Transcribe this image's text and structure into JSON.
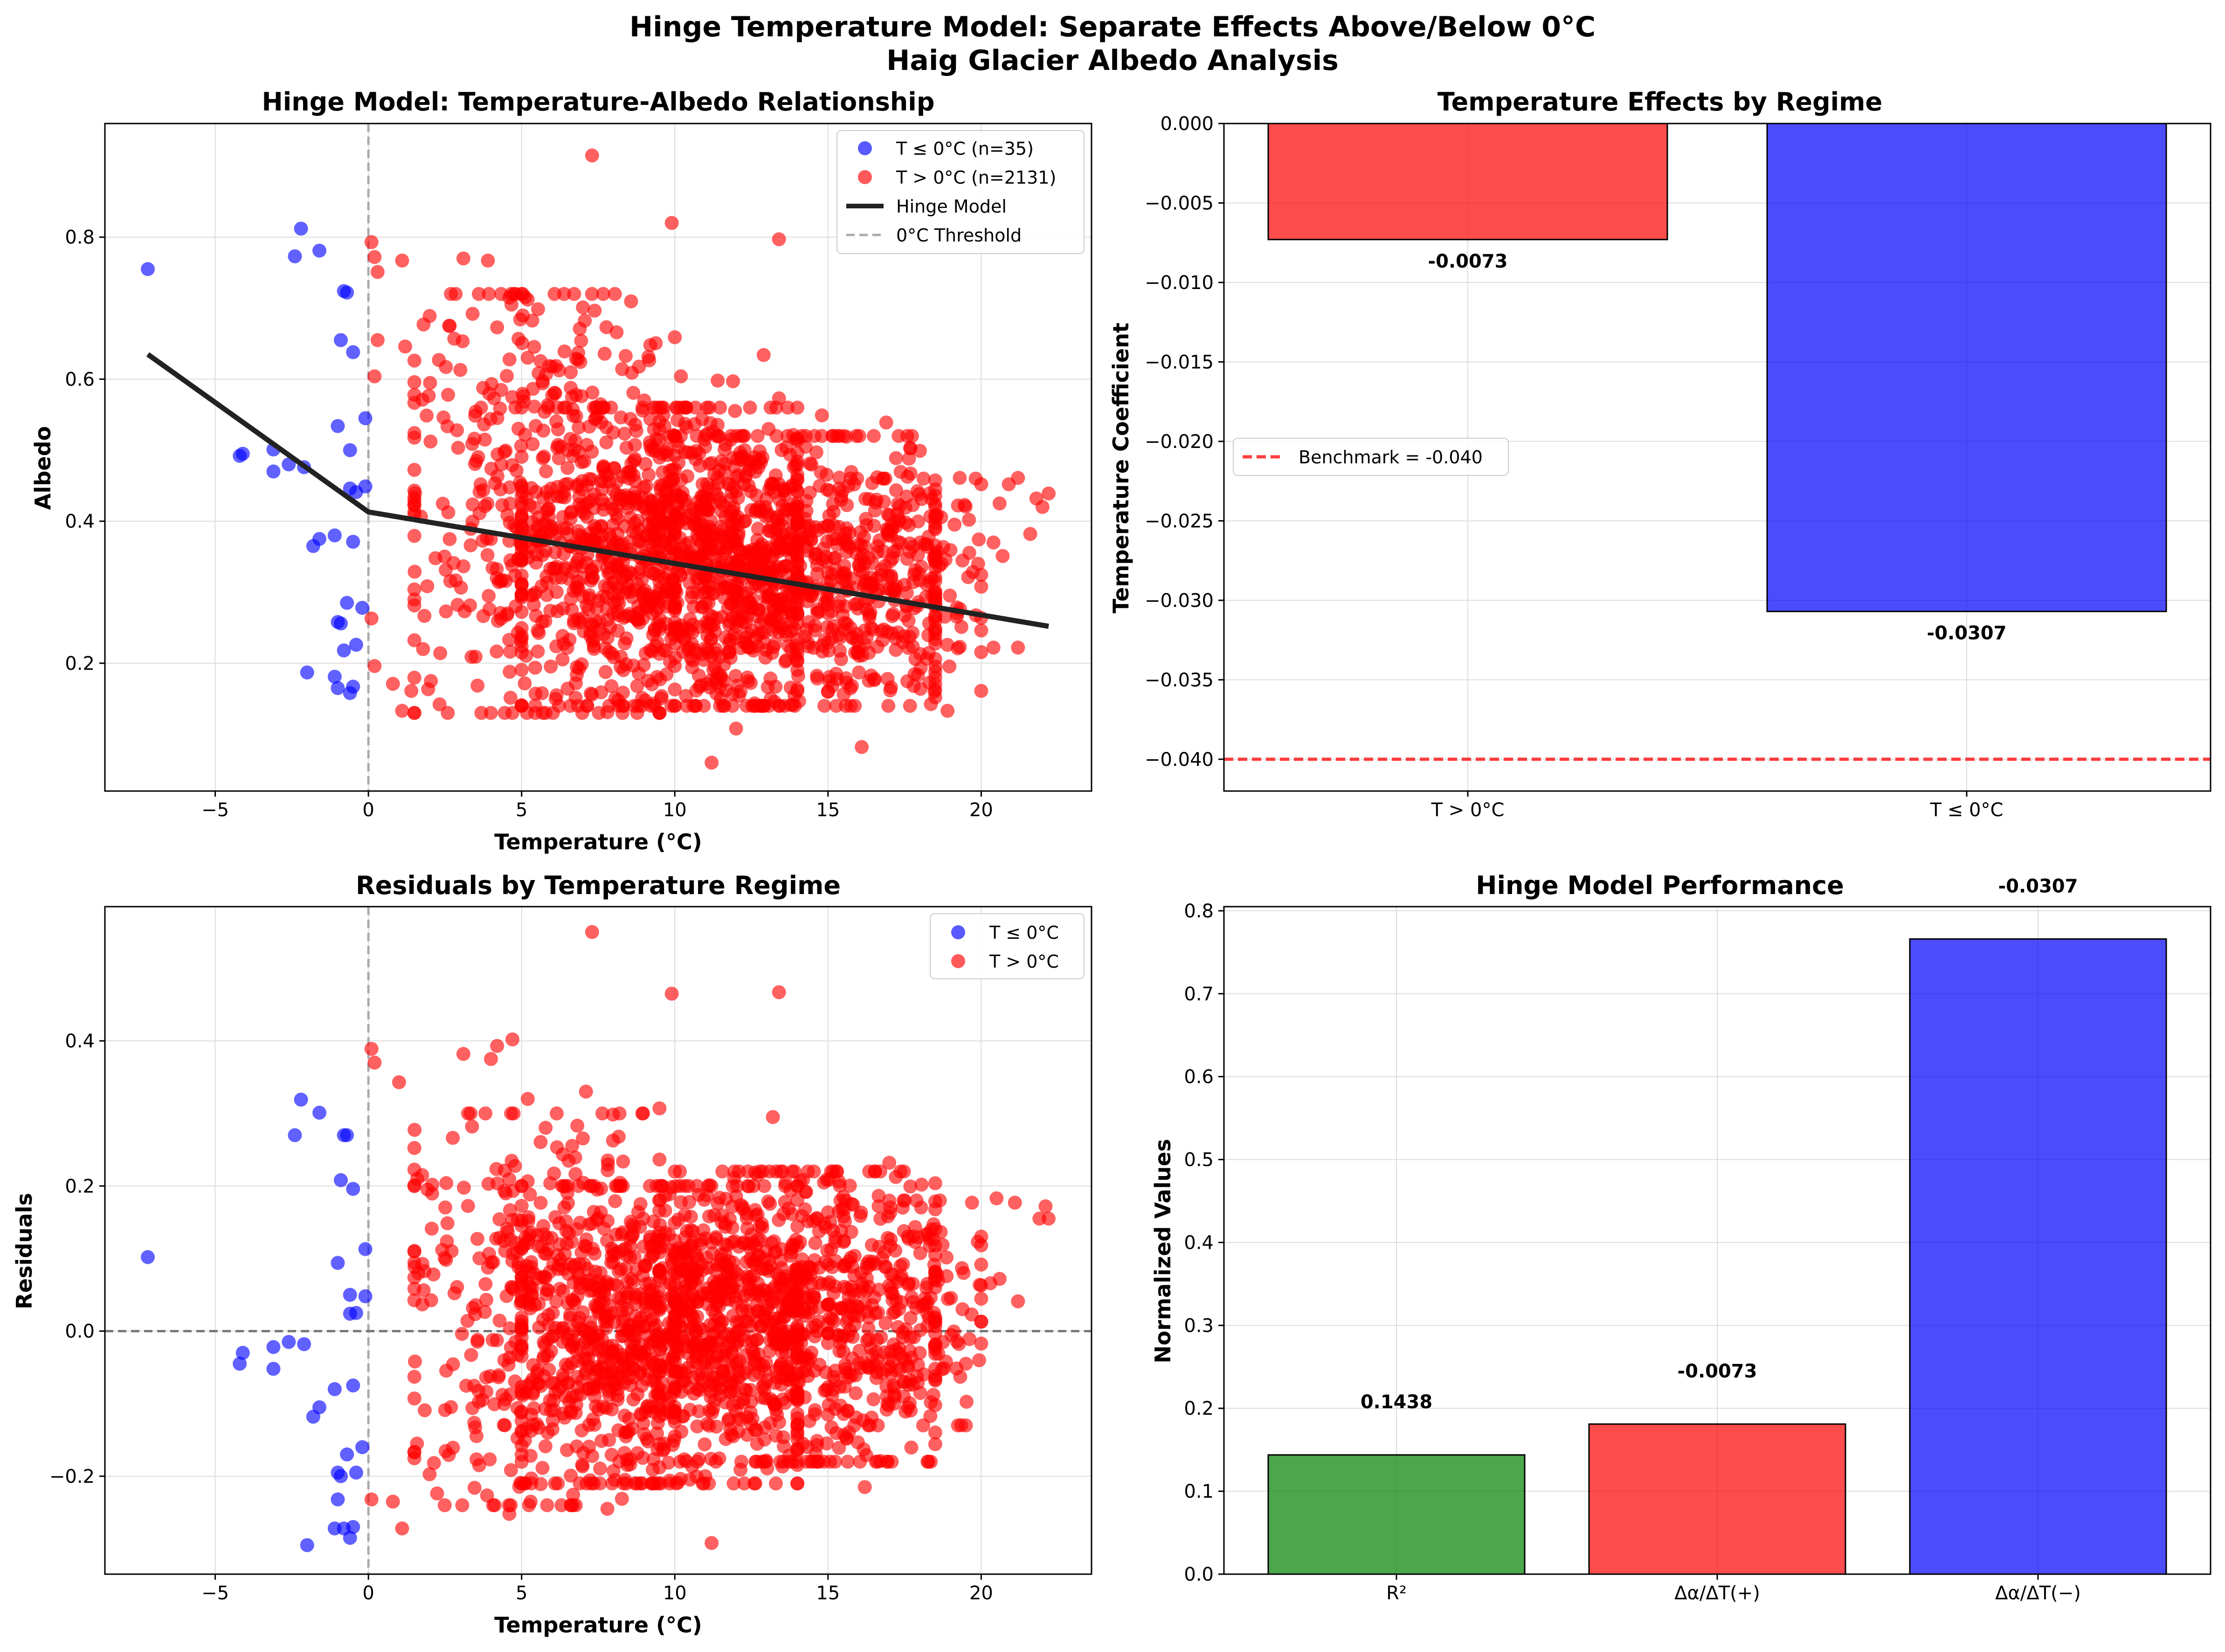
{
  "figure": {
    "title_line1": "Hinge Temperature Model: Separate Effects Above/Below 0°C",
    "title_line2": "Haig Glacier Albedo Analysis"
  },
  "colors": {
    "blue": "#0000ff",
    "red": "#ff0000",
    "green": "#008000",
    "black": "#000000",
    "grid": "#dddddd",
    "threshold": "#aaaaaa"
  },
  "chart_data": [
    {
      "type": "scatter",
      "title": "Hinge Model: Temperature-Albedo Relationship",
      "xlabel": "Temperature (°C)",
      "ylabel": "Albedo",
      "xlim": [
        -8.6,
        23.6
      ],
      "ylim": [
        0.02,
        0.96
      ],
      "xticks": [
        -5,
        0,
        5,
        10,
        15,
        20
      ],
      "yticks": [
        0.2,
        0.4,
        0.6,
        0.8
      ],
      "grid": true,
      "legend_position": "top-right",
      "legend": [
        "T ≤ 0°C (n=35)",
        "T > 0°C (n=2131)",
        "Hinge Model",
        "0°C Threshold"
      ],
      "threshold_x": 0,
      "hinge_line": {
        "x": [
          -7.2,
          0,
          22.2
        ],
        "y": [
          0.635,
          0.413,
          0.252
        ]
      },
      "series": [
        {
          "name": "T ≤ 0°C (n=35)",
          "color": "#0000ff",
          "points": [
            [
              -7.2,
              0.755
            ],
            [
              -2.2,
              0.812
            ],
            [
              -2.4,
              0.773
            ],
            [
              -1.6,
              0.781
            ],
            [
              -0.8,
              0.724
            ],
            [
              -0.7,
              0.722
            ],
            [
              -0.9,
              0.655
            ],
            [
              -0.5,
              0.638
            ],
            [
              -1.0,
              0.534
            ],
            [
              -0.6,
              0.5
            ],
            [
              -4.1,
              0.495
            ],
            [
              -4.2,
              0.492
            ],
            [
              -3.1,
              0.501
            ],
            [
              -2.6,
              0.48
            ],
            [
              -2.1,
              0.476
            ],
            [
              -3.1,
              0.47
            ],
            [
              -0.1,
              0.545
            ],
            [
              -0.6,
              0.446
            ],
            [
              -0.4,
              0.441
            ],
            [
              -0.1,
              0.449
            ],
            [
              -1.1,
              0.38
            ],
            [
              -1.6,
              0.375
            ],
            [
              -1.8,
              0.365
            ],
            [
              -0.5,
              0.371
            ],
            [
              -0.7,
              0.285
            ],
            [
              -0.2,
              0.278
            ],
            [
              -1.0,
              0.258
            ],
            [
              -0.9,
              0.256
            ],
            [
              -0.4,
              0.226
            ],
            [
              -0.8,
              0.218
            ],
            [
              -2.0,
              0.187
            ],
            [
              -1.1,
              0.181
            ],
            [
              -0.5,
              0.167
            ],
            [
              -0.6,
              0.158
            ],
            [
              -1.0,
              0.165
            ]
          ]
        },
        {
          "name": "T > 0°C (n=2131)",
          "color": "#ff0000",
          "points": [
            [
              7.3,
              0.915
            ],
            [
              9.9,
              0.82
            ],
            [
              13.4,
              0.797
            ],
            [
              0.1,
              0.793
            ],
            [
              0.2,
              0.772
            ],
            [
              1.1,
              0.767
            ],
            [
              3.1,
              0.77
            ],
            [
              3.9,
              0.767
            ],
            [
              0.3,
              0.751
            ],
            [
              4.6,
              0.715
            ],
            [
              5.2,
              0.712
            ],
            [
              7.0,
              0.701
            ],
            [
              2.0,
              0.689
            ],
            [
              3.4,
              0.692
            ],
            [
              1.8,
              0.677
            ],
            [
              4.2,
              0.673
            ],
            [
              6.9,
              0.671
            ],
            [
              8.1,
              0.666
            ],
            [
              10.0,
              0.659
            ],
            [
              9.2,
              0.648
            ],
            [
              0.3,
              0.655
            ],
            [
              1.2,
              0.646
            ],
            [
              2.3,
              0.627
            ],
            [
              6.4,
              0.639
            ],
            [
              12.9,
              0.634
            ],
            [
              0.2,
              0.604
            ],
            [
              3.0,
              0.613
            ],
            [
              5.8,
              0.607
            ],
            [
              8.6,
              0.609
            ],
            [
              10.2,
              0.604
            ],
            [
              11.4,
              0.598
            ],
            [
              11.9,
              0.597
            ],
            [
              1.5,
              0.578
            ],
            [
              2.6,
              0.578
            ],
            [
              4.1,
              0.573
            ],
            [
              6.1,
              0.58
            ],
            [
              9.0,
              0.57
            ],
            [
              13.4,
              0.573
            ],
            [
              16.9,
              0.539
            ],
            [
              14.8,
              0.549
            ],
            [
              15.6,
              0.519
            ],
            [
              18.0,
              0.499
            ],
            [
              19.3,
              0.461
            ],
            [
              20.0,
              0.452
            ],
            [
              20.9,
              0.452
            ],
            [
              21.2,
              0.461
            ],
            [
              21.8,
              0.432
            ],
            [
              22.2,
              0.439
            ],
            [
              22.0,
              0.42
            ],
            [
              20.6,
              0.425
            ],
            [
              19.6,
              0.402
            ],
            [
              20.4,
              0.37
            ],
            [
              19.9,
              0.34
            ],
            [
              20.7,
              0.351
            ],
            [
              21.6,
              0.382
            ],
            [
              19.3,
              0.223
            ],
            [
              20.4,
              0.222
            ],
            [
              21.2,
              0.222
            ],
            [
              18.5,
              0.152
            ],
            [
              18.9,
              0.133
            ],
            [
              16.1,
              0.082
            ],
            [
              11.2,
              0.06
            ],
            [
              12.0,
              0.108
            ],
            [
              7.8,
              0.131
            ],
            [
              1.1,
              0.133
            ],
            [
              0.8,
              0.171
            ],
            [
              0.2,
              0.196
            ],
            [
              1.4,
              0.161
            ],
            [
              0.1,
              0.263
            ]
          ],
          "clusters": [
            {
              "n": 380,
              "x": [
                1.5,
                9.5
              ],
              "y": [
                0.13,
                0.72
              ]
            },
            {
              "n": 900,
              "x": [
                5.0,
                14.0
              ],
              "y": [
                0.14,
                0.56
              ]
            },
            {
              "n": 640,
              "x": [
                10.0,
                18.5
              ],
              "y": [
                0.14,
                0.52
              ]
            },
            {
              "n": 150,
              "x": [
                15.0,
                20.0
              ],
              "y": [
                0.16,
                0.46
              ]
            }
          ]
        }
      ]
    },
    {
      "type": "bar",
      "title": "Temperature Effects by Regime",
      "xlabel": "",
      "ylabel": "Temperature Coefficient",
      "categories": [
        "T > 0°C",
        "T ≤ 0°C"
      ],
      "values": [
        -0.0073,
        -0.0307
      ],
      "value_labels": [
        "-0.0073",
        "-0.0307"
      ],
      "colors": [
        "#ff0000",
        "#0000ff"
      ],
      "ylim": [
        -0.042,
        0.0
      ],
      "yticks": [
        0.0,
        -0.005,
        -0.01,
        -0.015,
        -0.02,
        -0.025,
        -0.03,
        -0.035,
        -0.04
      ],
      "ytick_labels": [
        "0.000",
        "−0.005",
        "−0.010",
        "−0.015",
        "−0.020",
        "−0.025",
        "−0.030",
        "−0.035",
        "−0.040"
      ],
      "benchmark": {
        "value": -0.04,
        "label": "Benchmark = -0.040",
        "color": "#ff0000"
      },
      "legend_position": "center-left",
      "grid": true
    },
    {
      "type": "scatter",
      "title": "Residuals by Temperature Regime",
      "xlabel": "Temperature (°C)",
      "ylabel": "Residuals",
      "xlim": [
        -8.6,
        23.6
      ],
      "ylim": [
        -0.335,
        0.585
      ],
      "xticks": [
        -5,
        0,
        5,
        10,
        15,
        20
      ],
      "yticks": [
        -0.2,
        0.0,
        0.2,
        0.4
      ],
      "ytick_labels": [
        "−0.2",
        "0.0",
        "0.2",
        "0.4"
      ],
      "zero_line": 0.0,
      "threshold_x": 0,
      "grid": true,
      "legend_position": "top-right",
      "legend": [
        "T ≤ 0°C",
        "T > 0°C"
      ],
      "series": [
        {
          "name": "T ≤ 0°C",
          "color": "#0000ff",
          "points": [
            [
              -7.2,
              0.102
            ],
            [
              -2.2,
              0.319
            ],
            [
              -2.4,
              0.27
            ],
            [
              -1.6,
              0.301
            ],
            [
              -0.8,
              0.27
            ],
            [
              -0.7,
              0.27
            ],
            [
              -0.9,
              0.208
            ],
            [
              -0.5,
              0.196
            ],
            [
              -1.0,
              0.094
            ],
            [
              -0.6,
              0.05
            ],
            [
              -4.1,
              -0.03
            ],
            [
              -4.2,
              -0.045
            ],
            [
              -3.1,
              -0.022
            ],
            [
              -2.6,
              -0.015
            ],
            [
              -2.1,
              -0.018
            ],
            [
              -3.1,
              -0.052
            ],
            [
              -0.1,
              0.113
            ],
            [
              -0.6,
              0.024
            ],
            [
              -0.4,
              0.025
            ],
            [
              -0.1,
              0.048
            ],
            [
              -1.1,
              -0.08
            ],
            [
              -1.6,
              -0.105
            ],
            [
              -1.8,
              -0.118
            ],
            [
              -0.5,
              -0.075
            ],
            [
              -0.7,
              -0.17
            ],
            [
              -0.2,
              -0.16
            ],
            [
              -1.0,
              -0.232
            ],
            [
              -0.9,
              -0.2
            ],
            [
              -0.4,
              -0.195
            ],
            [
              -0.8,
              -0.272
            ],
            [
              -2.0,
              -0.295
            ],
            [
              -1.1,
              -0.272
            ],
            [
              -0.5,
              -0.27
            ],
            [
              -0.6,
              -0.285
            ],
            [
              -1.0,
              -0.195
            ]
          ]
        },
        {
          "name": "T > 0°C",
          "color": "#ff0000",
          "points": [
            [
              7.3,
              0.55
            ],
            [
              9.9,
              0.465
            ],
            [
              13.4,
              0.467
            ],
            [
              4.7,
              0.402
            ],
            [
              4.2,
              0.393
            ],
            [
              3.1,
              0.382
            ],
            [
              0.1,
              0.389
            ],
            [
              0.2,
              0.37
            ],
            [
              4.0,
              0.375
            ],
            [
              7.1,
              0.33
            ],
            [
              5.2,
              0.32
            ],
            [
              1.0,
              0.343
            ],
            [
              13.2,
              0.295
            ],
            [
              9.5,
              0.307
            ],
            [
              17.0,
              0.232
            ],
            [
              19.7,
              0.177
            ],
            [
              20.5,
              0.183
            ],
            [
              21.1,
              0.177
            ],
            [
              22.1,
              0.172
            ],
            [
              22.2,
              0.155
            ],
            [
              21.9,
              0.155
            ],
            [
              20.6,
              0.072
            ],
            [
              21.2,
              0.041
            ],
            [
              19.5,
              -0.045
            ],
            [
              20.3,
              0.066
            ],
            [
              16.2,
              -0.215
            ],
            [
              11.2,
              -0.292
            ],
            [
              7.8,
              -0.245
            ],
            [
              1.1,
              -0.272
            ],
            [
              0.1,
              -0.232
            ],
            [
              0.8,
              -0.235
            ],
            [
              4.6,
              -0.252
            ]
          ],
          "clusters": [
            {
              "n": 380,
              "x": [
                1.5,
                9.5
              ],
              "y": [
                -0.24,
                0.3
              ]
            },
            {
              "n": 900,
              "x": [
                5.0,
                14.0
              ],
              "y": [
                -0.21,
                0.2
              ]
            },
            {
              "n": 640,
              "x": [
                10.0,
                18.5
              ],
              "y": [
                -0.18,
                0.22
              ]
            },
            {
              "n": 150,
              "x": [
                15.0,
                20.0
              ],
              "y": [
                -0.13,
                0.18
              ]
            }
          ]
        }
      ]
    },
    {
      "type": "bar",
      "title": "Hinge Model Performance",
      "xlabel": "",
      "ylabel": "Normalized Values",
      "categories": [
        "R²",
        "Δα/ΔT(+)",
        "Δα/ΔT(−)"
      ],
      "values": [
        0.1438,
        0.181,
        0.766
      ],
      "value_labels": [
        "0.1438",
        "-0.0073",
        "-0.0307"
      ],
      "colors": [
        "#008000",
        "#ff0000",
        "#0000ff"
      ],
      "ylim": [
        0.0,
        0.805
      ],
      "yticks": [
        0.0,
        0.1,
        0.2,
        0.3,
        0.4,
        0.5,
        0.6,
        0.7,
        0.8
      ],
      "ytick_labels": [
        "0.0",
        "0.1",
        "0.2",
        "0.3",
        "0.4",
        "0.5",
        "0.6",
        "0.7",
        "0.8"
      ],
      "grid": true
    }
  ]
}
